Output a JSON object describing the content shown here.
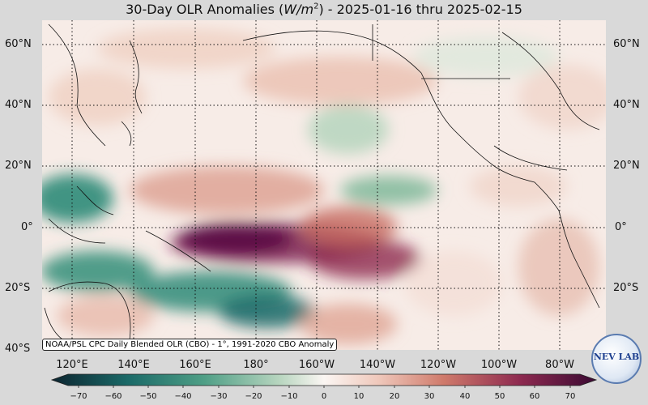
{
  "title": {
    "prefix": "30-Day OLR Anomalies (",
    "unit_main": "W/m",
    "unit_exp": "2",
    "suffix": ") - 2025-01-16 thru 2025-02-15"
  },
  "attribution": "NOAA/PSL CPC Daily Blended OLR (CBO) - 1°, 1991-2020 CBO Anomaly",
  "lat_labels": [
    "60°N",
    "40°N",
    "20°N",
    "0°",
    "20°S",
    "40°S"
  ],
  "lon_labels": [
    "120°E",
    "140°E",
    "160°E",
    "180°",
    "160°W",
    "140°W",
    "120°W",
    "100°W",
    "80°W"
  ],
  "colorbar": {
    "ticks": [
      "−70",
      "−60",
      "−50",
      "−40",
      "−30",
      "−20",
      "−10",
      "0",
      "10",
      "20",
      "30",
      "40",
      "50",
      "60",
      "70"
    ],
    "min": -70,
    "max": 70,
    "colors": [
      "#0c2530",
      "#12434f",
      "#1b6a68",
      "#2e8b78",
      "#63ad8f",
      "#a8cdb2",
      "#dbe9dd",
      "#f8f2ef",
      "#f0d0c4",
      "#df9f8c",
      "#c76b60",
      "#a3414e",
      "#7c1f50",
      "#5a0f46",
      "#3b0a33"
    ]
  },
  "logo": "NEV LAB"
}
